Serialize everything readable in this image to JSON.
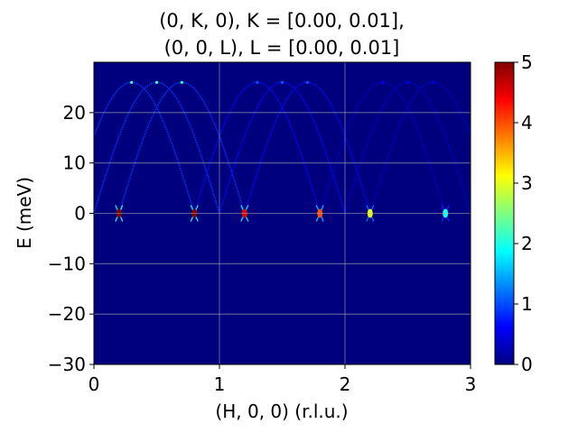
{
  "chart_data": {
    "type": "heatmap",
    "title_lines": [
      "(0, K, 0), K = [0.00, 0.01],",
      "(0, 0, L), L = [0.00, 0.01]"
    ],
    "xlabel": "(H, 0, 0) (r.l.u.)",
    "ylabel": "E (meV)",
    "xlim": [
      0,
      3
    ],
    "ylim": [
      -30,
      30
    ],
    "x_ticks": [
      0,
      1,
      2,
      3
    ],
    "y_ticks": [
      -30,
      -20,
      -10,
      0,
      10,
      20
    ],
    "grid": true,
    "background_color": "#00007f",
    "colorbar": {
      "range": [
        0,
        5
      ],
      "ticks": [
        0,
        1,
        2,
        3,
        4,
        5
      ],
      "colormap": "jet",
      "colors": [
        "#00007f",
        "#0000ff",
        "#007fff",
        "#00ffff",
        "#7fff7f",
        "#ffff00",
        "#ff7f00",
        "#ff0000",
        "#7f0000"
      ]
    },
    "dispersion": {
      "description": "spin-wave dispersion arcs",
      "max_energy": 26,
      "period": 1,
      "branches_centered_at_H": [
        0.3,
        0.5,
        0.7,
        1.3,
        1.5,
        1.7,
        2.3,
        2.5,
        2.7
      ],
      "zero_energy_points": [
        {
          "H": 0.2,
          "E": 0,
          "intensity": 5
        },
        {
          "H": 0.8,
          "E": 0,
          "intensity": 5
        },
        {
          "H": 1.2,
          "E": 0,
          "intensity": 4.5
        },
        {
          "H": 1.8,
          "E": 0,
          "intensity": 4
        },
        {
          "H": 2.2,
          "E": 0,
          "intensity": 3
        },
        {
          "H": 2.8,
          "E": 0,
          "intensity": 2
        }
      ]
    }
  }
}
